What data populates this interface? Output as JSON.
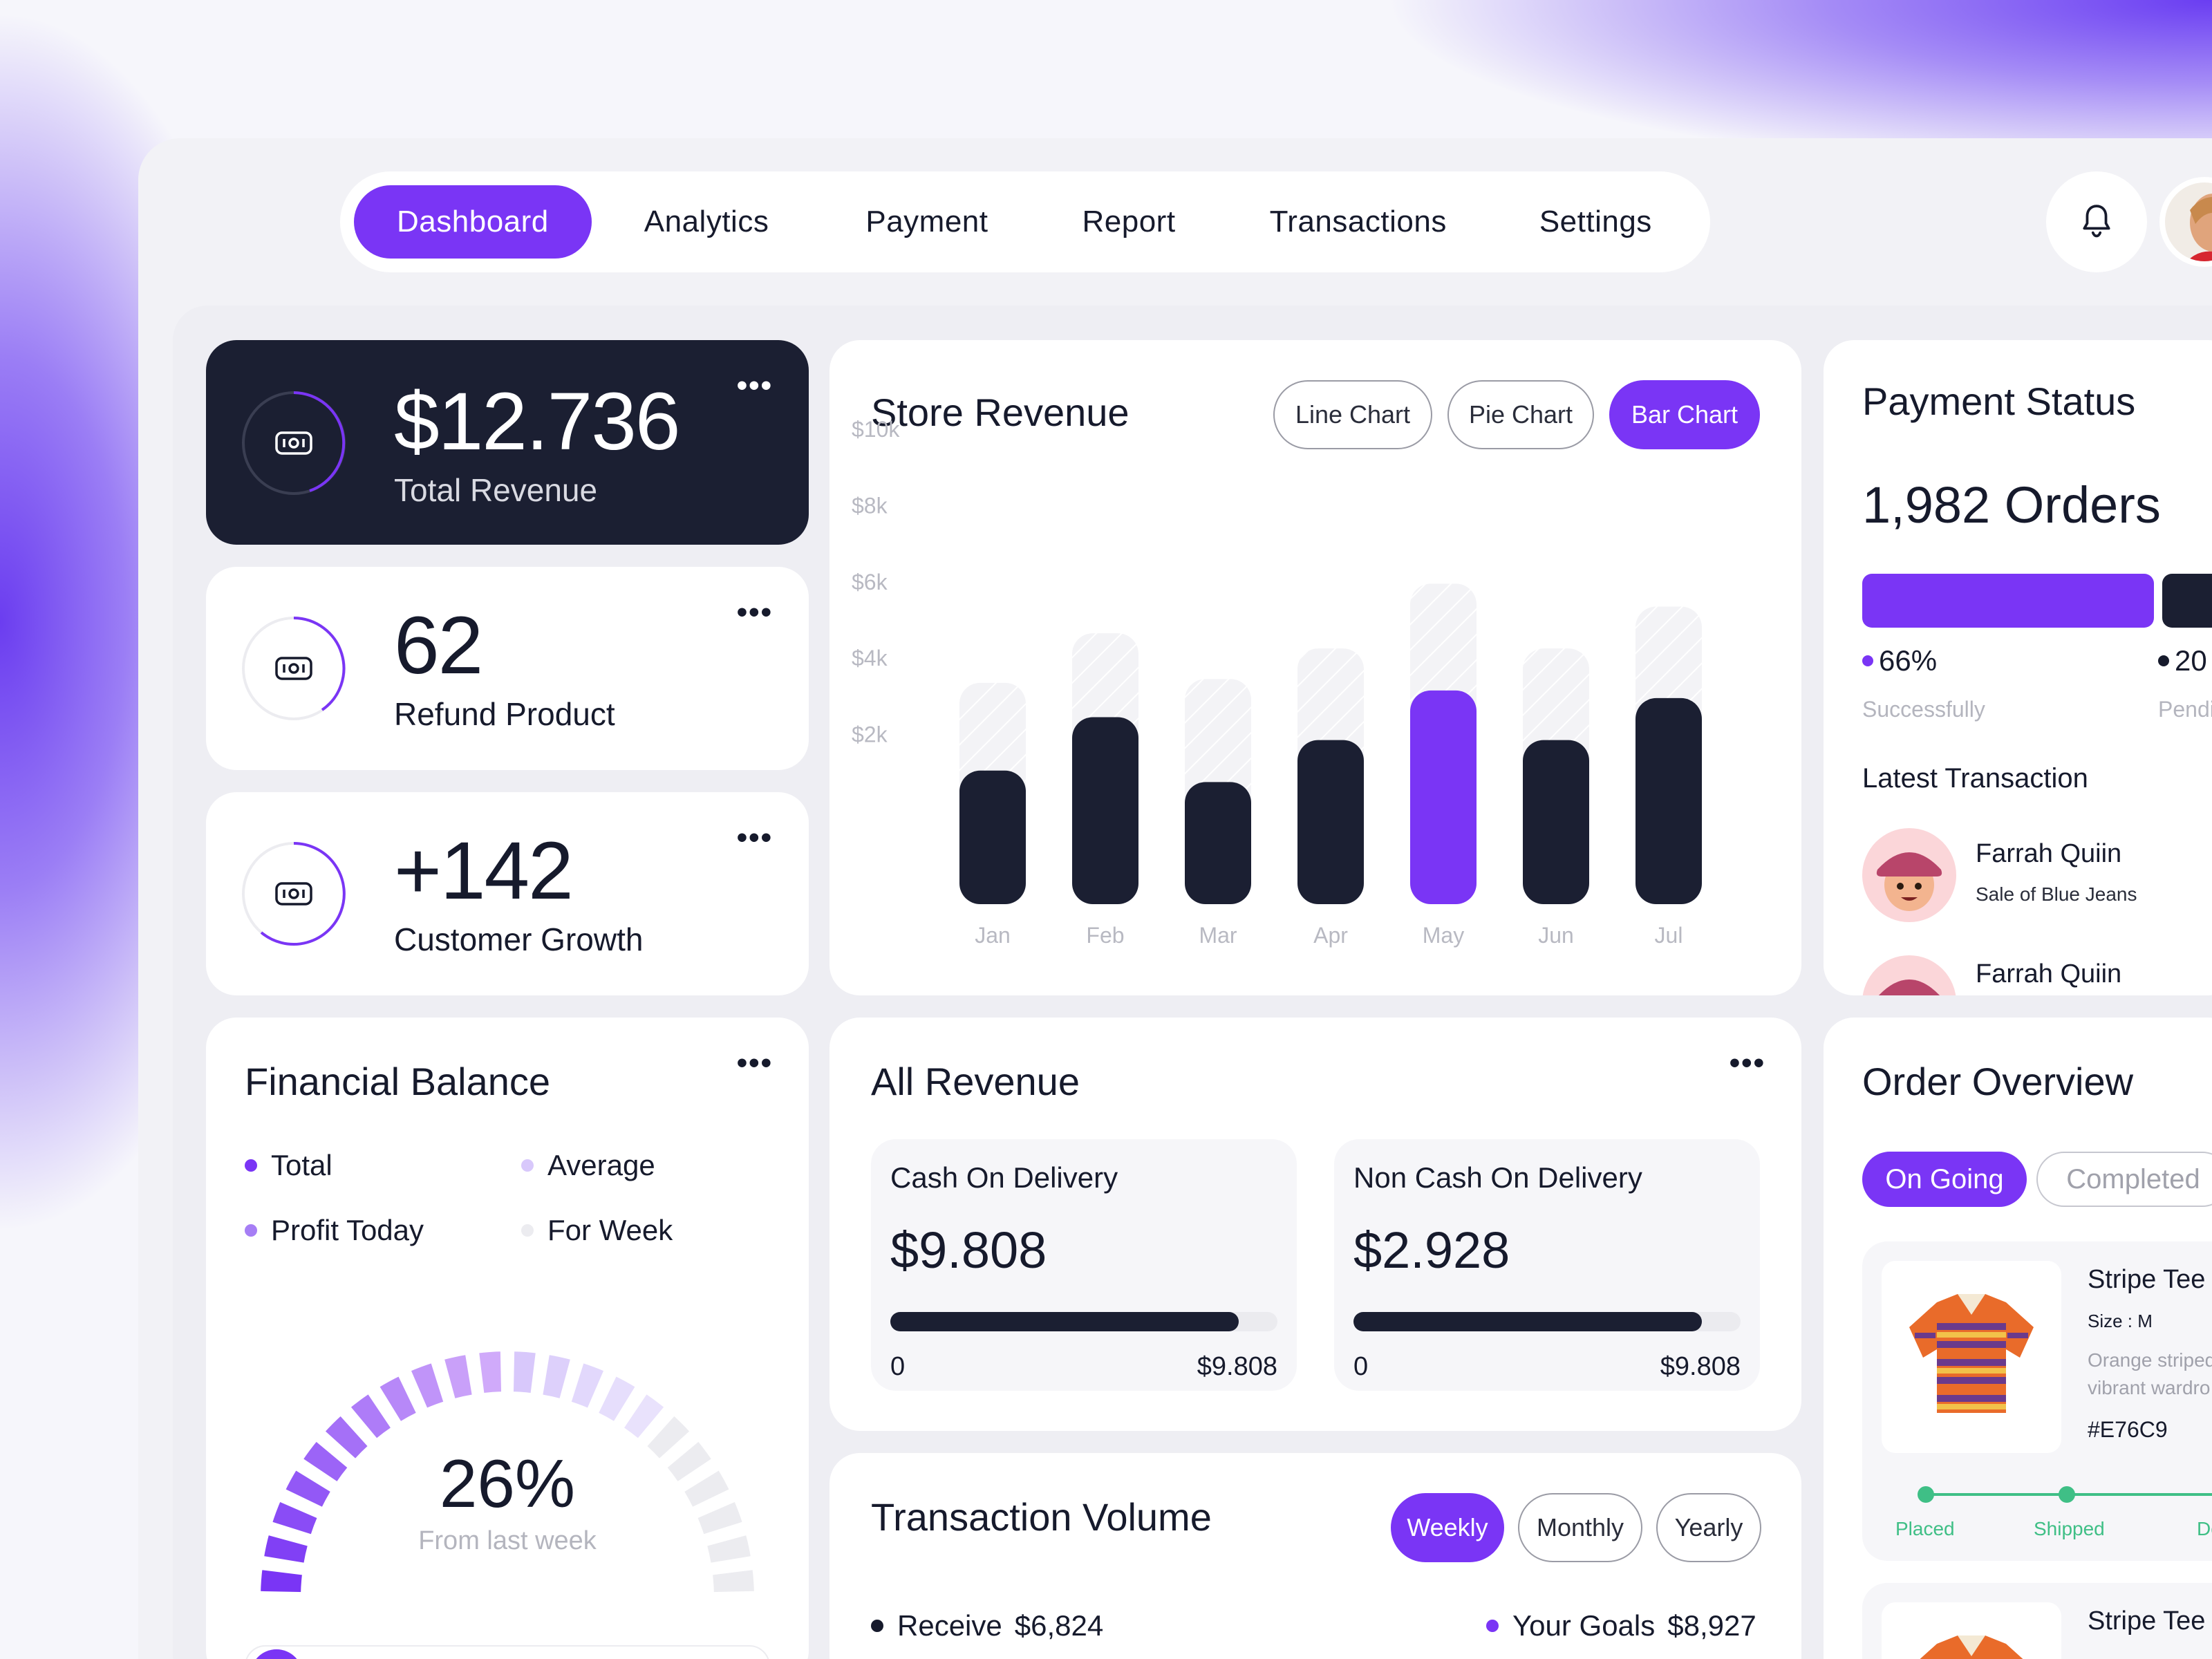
{
  "nav": {
    "items": [
      "Dashboard",
      "Analytics",
      "Payment",
      "Report",
      "Transactions",
      "Settings"
    ],
    "active": "Dashboard"
  },
  "stats": {
    "revenue": {
      "value": "$12.736",
      "label": "Total Revenue"
    },
    "refund": {
      "value": "62",
      "label": "Refund Product"
    },
    "growth": {
      "value": "+142",
      "label": "Customer Growth"
    },
    "more": "•••"
  },
  "store_revenue": {
    "title": "Store Revenue",
    "tabs": [
      "Line Chart",
      "Pie Chart",
      "Bar Chart"
    ],
    "active_tab": "Bar Chart"
  },
  "chart_data": {
    "type": "bar",
    "title": "Store Revenue",
    "categories": [
      "Jan",
      "Feb",
      "Mar",
      "Apr",
      "May",
      "Jun",
      "Jul"
    ],
    "series": [
      {
        "values": [
          3500,
          4900,
          3200,
          4300,
          5600,
          4300,
          5400
        ]
      },
      {
        "values": [
          5800,
          7100,
          5900,
          6700,
          8400,
          6700,
          7800
        ]
      }
    ],
    "highlight_index": 4,
    "y_ticks": [
      "$10k",
      "$8k",
      "$6k",
      "$4k",
      "$2k"
    ],
    "ylim": [
      0,
      10000
    ],
    "colors": {
      "bar": "#1b1f32",
      "highlight": "#7a35f5",
      "background_bar": "#f1f1f4"
    }
  },
  "payment_status": {
    "title": "Payment Status",
    "orders": "1,982 Orders",
    "success_pct": "66%",
    "success_label": "Successfully",
    "pending_pct": "20",
    "pending_label": "Pendi",
    "success_fraction": 0.66,
    "latest_title": "Latest Transaction",
    "transactions": [
      {
        "name": "Farrah Quiin",
        "desc": "Sale of Blue Jeans"
      },
      {
        "name": "Farrah Quiin",
        "desc": ""
      }
    ]
  },
  "financial_balance": {
    "title": "Financial Balance",
    "legend": [
      "Total",
      "Average",
      "Profit Today",
      "For Week"
    ],
    "percent": "26%",
    "caption": "From last week",
    "colors": [
      "#7a35f5",
      "#d8c8fb",
      "#a67ef5",
      "#ececf0"
    ]
  },
  "all_revenue": {
    "title": "All Revenue",
    "cash": {
      "title": "Cash On Delivery",
      "value": "$9.808",
      "min": "0",
      "max": "$9.808",
      "fill": 0.9
    },
    "noncash": {
      "title": "Non Cash On Delivery",
      "value": "$2.928",
      "min": "0",
      "max": "$9.808",
      "fill": 0.9
    }
  },
  "transaction_volume": {
    "title": "Transaction Volume",
    "tabs": [
      "Weekly",
      "Monthly",
      "Yearly"
    ],
    "active_tab": "Weekly",
    "receive_label": "Receive",
    "receive_value": "$6,824",
    "goals_label": "Your Goals",
    "goals_value": "$8,927"
  },
  "order_overview": {
    "title": "Order Overview",
    "tabs": [
      "On Going",
      "Completed"
    ],
    "active_tab": "On Going",
    "item": {
      "name": "Stripe Tee",
      "size": "Size : M",
      "desc1": "Orange striped",
      "desc2": "vibrant wardro",
      "code": "#E76C9",
      "steps": [
        "Placed",
        "Shipped",
        "De"
      ]
    },
    "item2_name": "Stripe Tee"
  }
}
